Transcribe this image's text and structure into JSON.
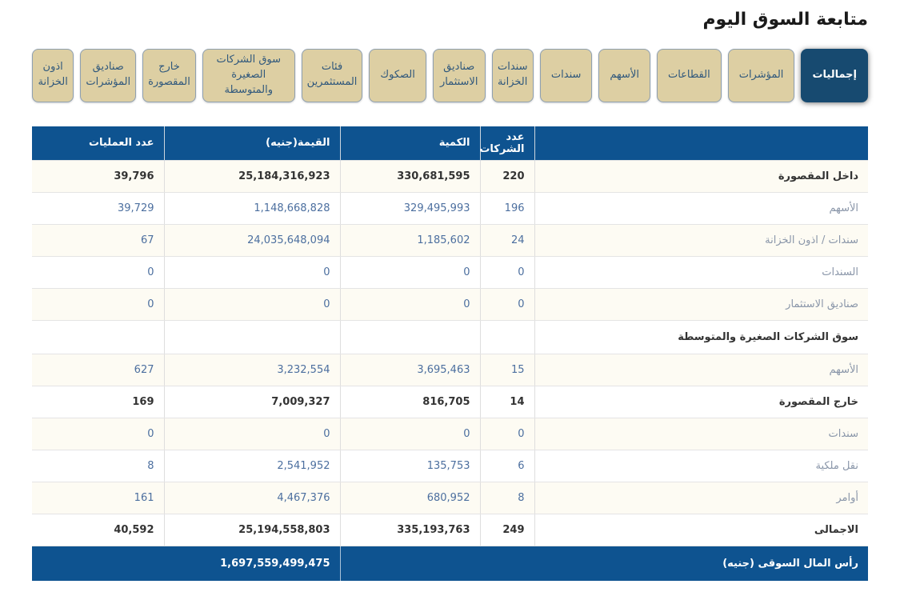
{
  "page": {
    "title": "متابعة السوق اليوم"
  },
  "colors": {
    "accent_blue": "#0e5390",
    "active_tab_blue": "#174a70",
    "tab_tan": "#ddcfa3",
    "alt_row_cream": "#fdfbf3",
    "muted_text": "#8a96a9",
    "number_text": "#4c6f9f"
  },
  "tabs": {
    "items": [
      {
        "label": "إجماليات",
        "active": true
      },
      {
        "label": "المؤشرات",
        "active": false
      },
      {
        "label": "القطاعات",
        "active": false
      },
      {
        "label": "الأسهم",
        "active": false
      },
      {
        "label": "سندات",
        "active": false
      },
      {
        "label": "سندات الخزانة",
        "active": false
      },
      {
        "label": "صناديق الاستثمار",
        "active": false
      },
      {
        "label": "الصكوك",
        "active": false
      },
      {
        "label": "فئات المستثمرين",
        "active": false
      },
      {
        "label": "سوق الشركات الصغيرة والمتوسطة",
        "active": false
      },
      {
        "label": "خارج المقصورة",
        "active": false
      },
      {
        "label": "صناديق المؤشرات",
        "active": false
      },
      {
        "label": "اذون الخزانة",
        "active": false
      }
    ]
  },
  "table": {
    "headers": {
      "label": "",
      "companies": "عدد الشركات",
      "quantity": "الكمية",
      "value": "القيمة(جنيه)",
      "operations": "عدد العمليات"
    },
    "rows": [
      {
        "label": "داخل المقصورة",
        "companies": "220",
        "quantity": "330,681,595",
        "value": "25,184,316,923",
        "operations": "39,796",
        "emphasis": true
      },
      {
        "label": "الأسهم",
        "companies": "196",
        "quantity": "329,495,993",
        "value": "1,148,668,828",
        "operations": "39,729",
        "emphasis": false
      },
      {
        "label": "سندات / اذون الخزانة",
        "companies": "24",
        "quantity": "1,185,602",
        "value": "24,035,648,094",
        "operations": "67",
        "emphasis": false
      },
      {
        "label": "السندات",
        "companies": "0",
        "quantity": "0",
        "value": "0",
        "operations": "0",
        "emphasis": false
      },
      {
        "label": "صناديق الاستثمار",
        "companies": "0",
        "quantity": "0",
        "value": "0",
        "operations": "0",
        "emphasis": false
      },
      {
        "label": "سوق الشركات الصغيرة والمتوسطة",
        "companies": "",
        "quantity": "",
        "value": "",
        "operations": "",
        "emphasis": true
      },
      {
        "label": "الأسهم",
        "companies": "15",
        "quantity": "3,695,463",
        "value": "3,232,554",
        "operations": "627",
        "emphasis": false
      },
      {
        "label": "خارج المقصورة",
        "companies": "14",
        "quantity": "816,705",
        "value": "7,009,327",
        "operations": "169",
        "emphasis": true
      },
      {
        "label": "سندات",
        "companies": "0",
        "quantity": "0",
        "value": "0",
        "operations": "0",
        "emphasis": false
      },
      {
        "label": "نقل ملكية",
        "companies": "6",
        "quantity": "135,753",
        "value": "2,541,952",
        "operations": "8",
        "emphasis": false
      },
      {
        "label": "أوامر",
        "companies": "8",
        "quantity": "680,952",
        "value": "4,467,376",
        "operations": "161",
        "emphasis": false
      },
      {
        "label": "الاجمالى",
        "companies": "249",
        "quantity": "335,193,763",
        "value": "25,194,558,803",
        "operations": "40,592",
        "emphasis": true
      }
    ],
    "footer": {
      "label": "رأس المال السوقى (جنيه)",
      "value": "1,697,559,499,475"
    }
  }
}
